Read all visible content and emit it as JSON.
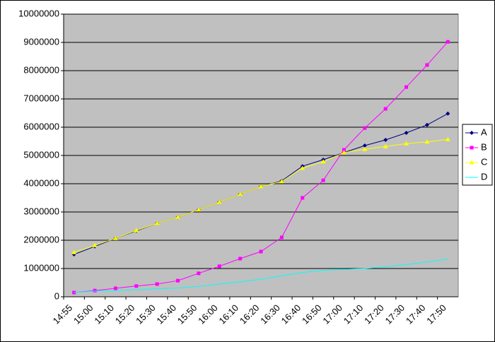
{
  "chart_data": {
    "type": "line",
    "categories": [
      "14:55",
      "15:00",
      "15:10",
      "15:20",
      "15:30",
      "15:40",
      "15:50",
      "16:00",
      "16:10",
      "16:20",
      "16:30",
      "16:40",
      "16:50",
      "17:00",
      "17:10",
      "17:20",
      "17:30",
      "17:40",
      "17:50"
    ],
    "series": [
      {
        "name": "A",
        "color": "#000080",
        "marker": "diamond",
        "values": [
          1500000,
          1780000,
          2070000,
          2330000,
          2600000,
          2820000,
          3080000,
          3350000,
          3630000,
          3900000,
          4100000,
          4620000,
          4850000,
          5100000,
          5350000,
          5550000,
          5800000,
          6080000,
          6480000
        ]
      },
      {
        "name": "B",
        "color": "#ff00ff",
        "marker": "square",
        "values": [
          150000,
          220000,
          300000,
          380000,
          450000,
          570000,
          830000,
          1080000,
          1350000,
          1600000,
          2100000,
          3500000,
          4120000,
          5200000,
          5970000,
          6650000,
          7420000,
          8200000,
          9020000
        ]
      },
      {
        "name": "C",
        "color": "#ffff00",
        "marker": "triangle",
        "values": [
          1570000,
          1820000,
          2070000,
          2350000,
          2600000,
          2820000,
          3080000,
          3350000,
          3630000,
          3900000,
          4080000,
          4550000,
          4780000,
          5100000,
          5220000,
          5320000,
          5420000,
          5480000,
          5570000
        ]
      },
      {
        "name": "D",
        "color": "#00ffff",
        "marker": "none",
        "values": [
          150000,
          200000,
          220000,
          250000,
          280000,
          310000,
          370000,
          450000,
          530000,
          620000,
          740000,
          860000,
          930000,
          970000,
          1000000,
          1060000,
          1140000,
          1230000,
          1330000
        ]
      }
    ],
    "ylim": [
      0,
      10000000
    ],
    "yticks": [
      0,
      1000000,
      2000000,
      3000000,
      4000000,
      5000000,
      6000000,
      7000000,
      8000000,
      9000000,
      10000000
    ],
    "grid": true,
    "legend": "right",
    "plot_background": "#c0c0c0"
  }
}
